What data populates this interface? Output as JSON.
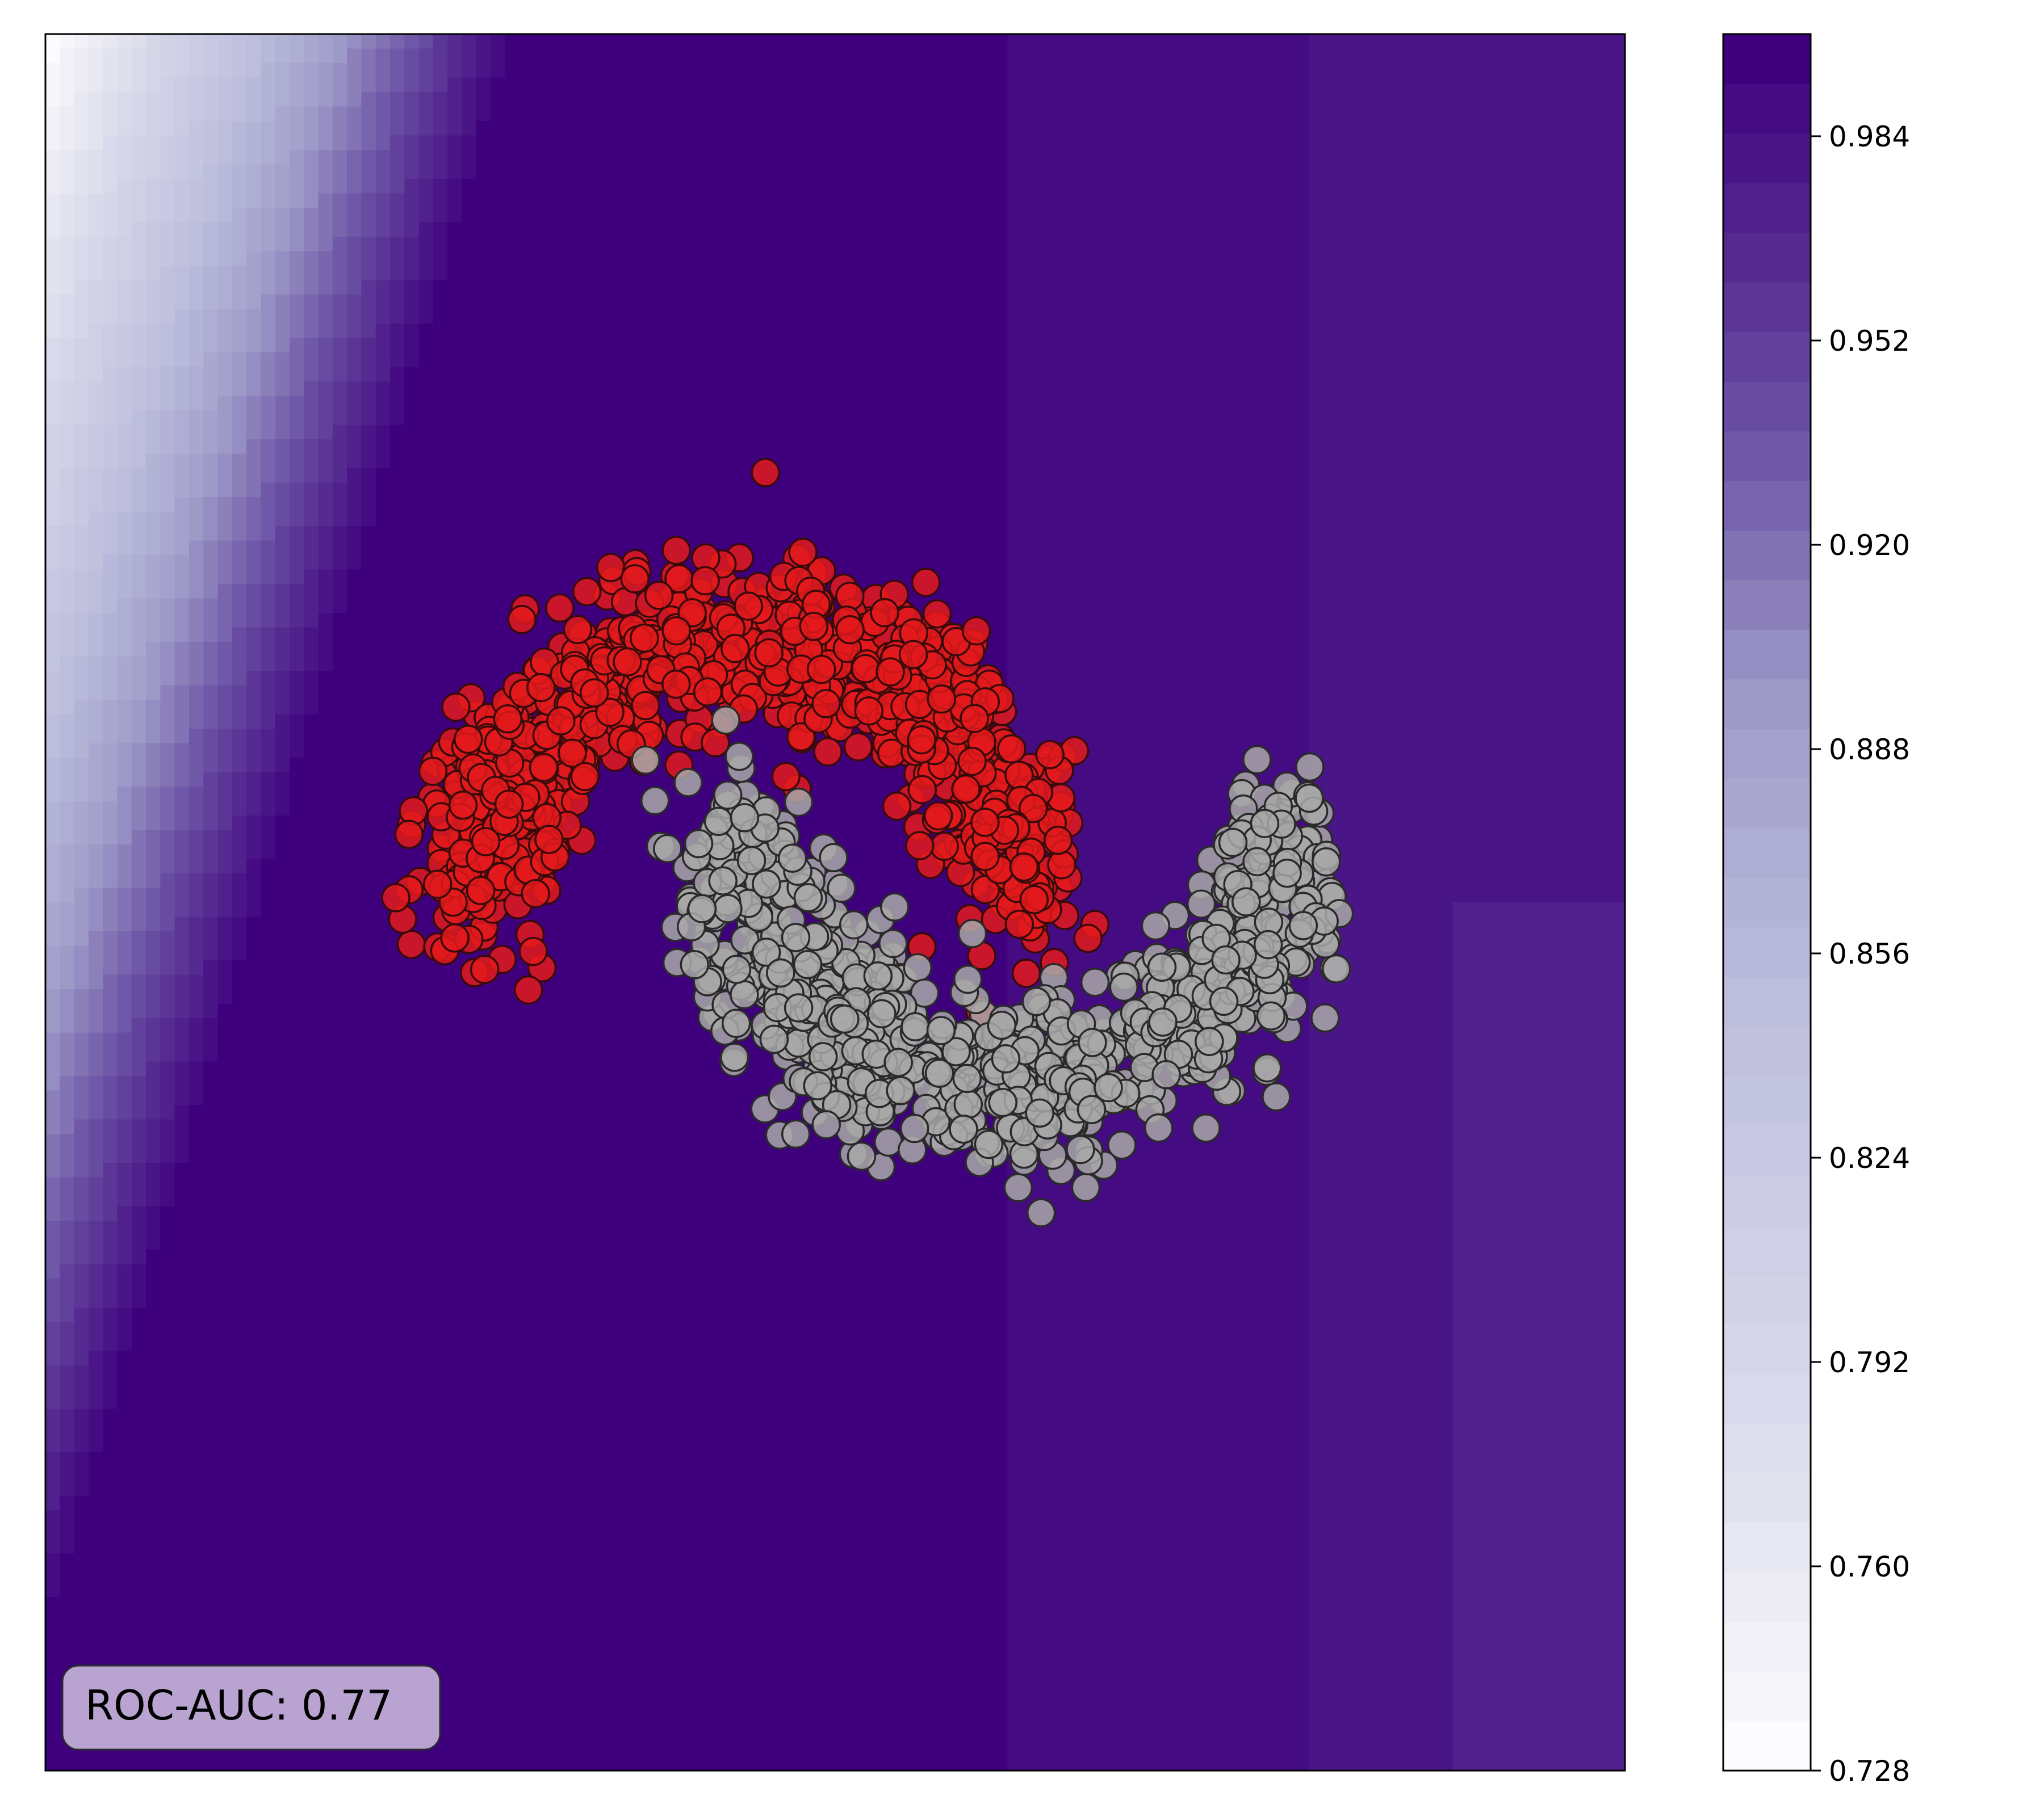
{
  "chart_data": {
    "type": "scatter",
    "title": "",
    "xlabel": "",
    "ylabel": "",
    "background": "decision-surface contour (probability)",
    "xlim": [
      -2.5,
      3.0
    ],
    "ylim": [
      -2.0,
      2.6
    ],
    "grid": false,
    "legend": "none",
    "annotation": {
      "text": "ROC-AUC: 0.77",
      "placement": "bottom-left"
    },
    "colorbar": {
      "colormap": "Purples",
      "range": [
        0.728,
        1.0
      ],
      "ticks": [
        "0.728",
        "0.760",
        "0.792",
        "0.824",
        "0.856",
        "0.888",
        "0.920",
        "0.952",
        "0.984"
      ],
      "levels": 35
    },
    "series": [
      {
        "color": "#e31a1c",
        "edge_color": "#3a0a0a",
        "shape": "upper moon",
        "centre": [
          -0.05,
          0.55
        ],
        "radius": 0.95,
        "noise": 0.12,
        "count": 900
      },
      {
        "color": "#a8a8a8",
        "edge_color": "#2a2a2a",
        "shape": "lower moon",
        "centre": [
          0.85,
          0.05
        ],
        "radius": 0.95,
        "noise": 0.12,
        "count": 900
      }
    ]
  },
  "colors": {
    "surface_dark": "#3f007d",
    "surface_light": "#fcfbfd",
    "badge_fill": "#b9a3d1",
    "frame": "#000000"
  }
}
